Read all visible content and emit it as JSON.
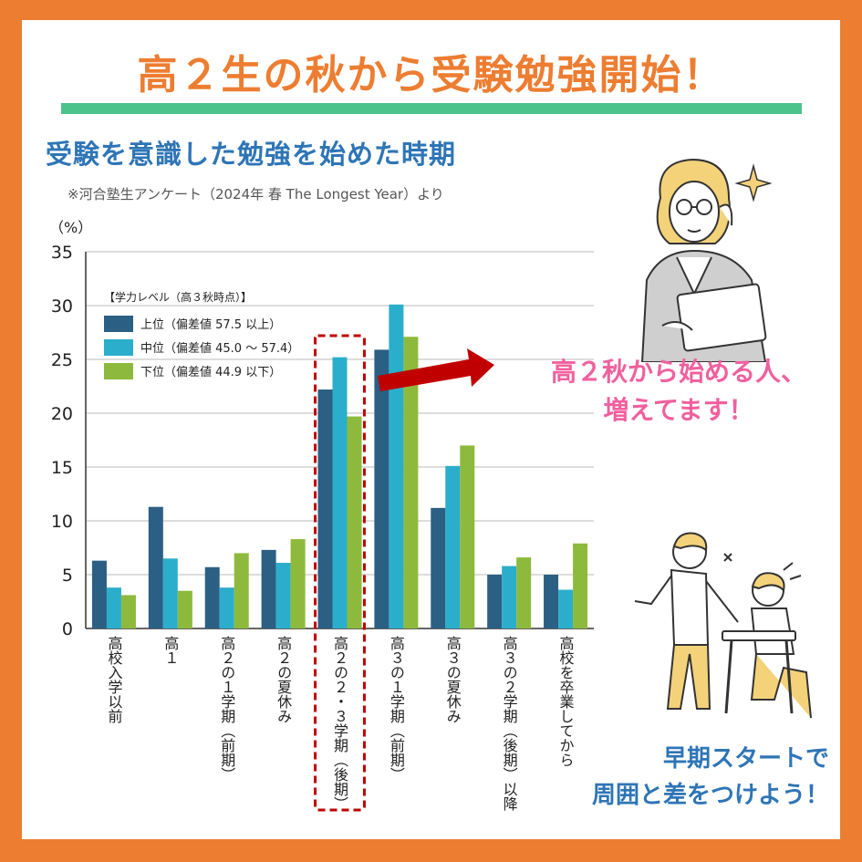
{
  "headline": "高２生の秋から受験勉強開始！",
  "callout": {
    "line1": "高２秋から始める人、",
    "line2": "増えてます！"
  },
  "slogan": {
    "line1": "早期スタートで",
    "line2": "周囲と差をつけよう！"
  },
  "colors": {
    "background": "#ED7D31",
    "headline": "#ED7D31",
    "accent_green": "#4CC38A",
    "title_blue": "#2E75B6",
    "callout_pink": "#F0609E",
    "arrow_red": "#C00000",
    "highlight_box": "#C00000"
  },
  "illustrations": [
    "woman-with-tablet-icon",
    "students-studying-icon"
  ],
  "chart_data": {
    "type": "bar",
    "title": "受験を意識した勉強を始めた時期",
    "subtitle": "※河合塾生アンケート（2024年 春 The Longest Year）より",
    "ylabel": "（%）",
    "ylim": [
      0,
      35
    ],
    "yticks": [
      0,
      5,
      10,
      15,
      20,
      25,
      30,
      35
    ],
    "grid": true,
    "legend_title": "【学力レベル（高３秋時点）】",
    "legend_position": "top-left",
    "categories": [
      "高校入学以前",
      "高１",
      "高２の１学期（前期）",
      "高２の夏休み",
      "高２の２・３学期（後期）",
      "高３の１学期（前期）",
      "高３の夏休み",
      "高３の２学期（後期）以降",
      "高校を卒業してから"
    ],
    "highlight_category": "高２の２・３学期（後期）",
    "series": [
      {
        "name": "上位（偏差値 57.5 以上）",
        "color": "#2B5F84",
        "values": [
          6.3,
          11.3,
          5.7,
          7.3,
          22.2,
          25.9,
          11.2,
          5.0,
          5.0
        ]
      },
      {
        "name": "中位（偏差値 45.0 〜 57.4）",
        "color": "#2BAECB",
        "values": [
          3.8,
          6.5,
          3.8,
          6.1,
          25.2,
          30.1,
          15.1,
          5.8,
          3.6
        ]
      },
      {
        "name": "下位（偏差値 44.9 以下）",
        "color": "#8DBA3C",
        "values": [
          3.1,
          3.5,
          7.0,
          8.3,
          19.7,
          27.1,
          17.0,
          6.6,
          7.9
        ]
      }
    ]
  }
}
